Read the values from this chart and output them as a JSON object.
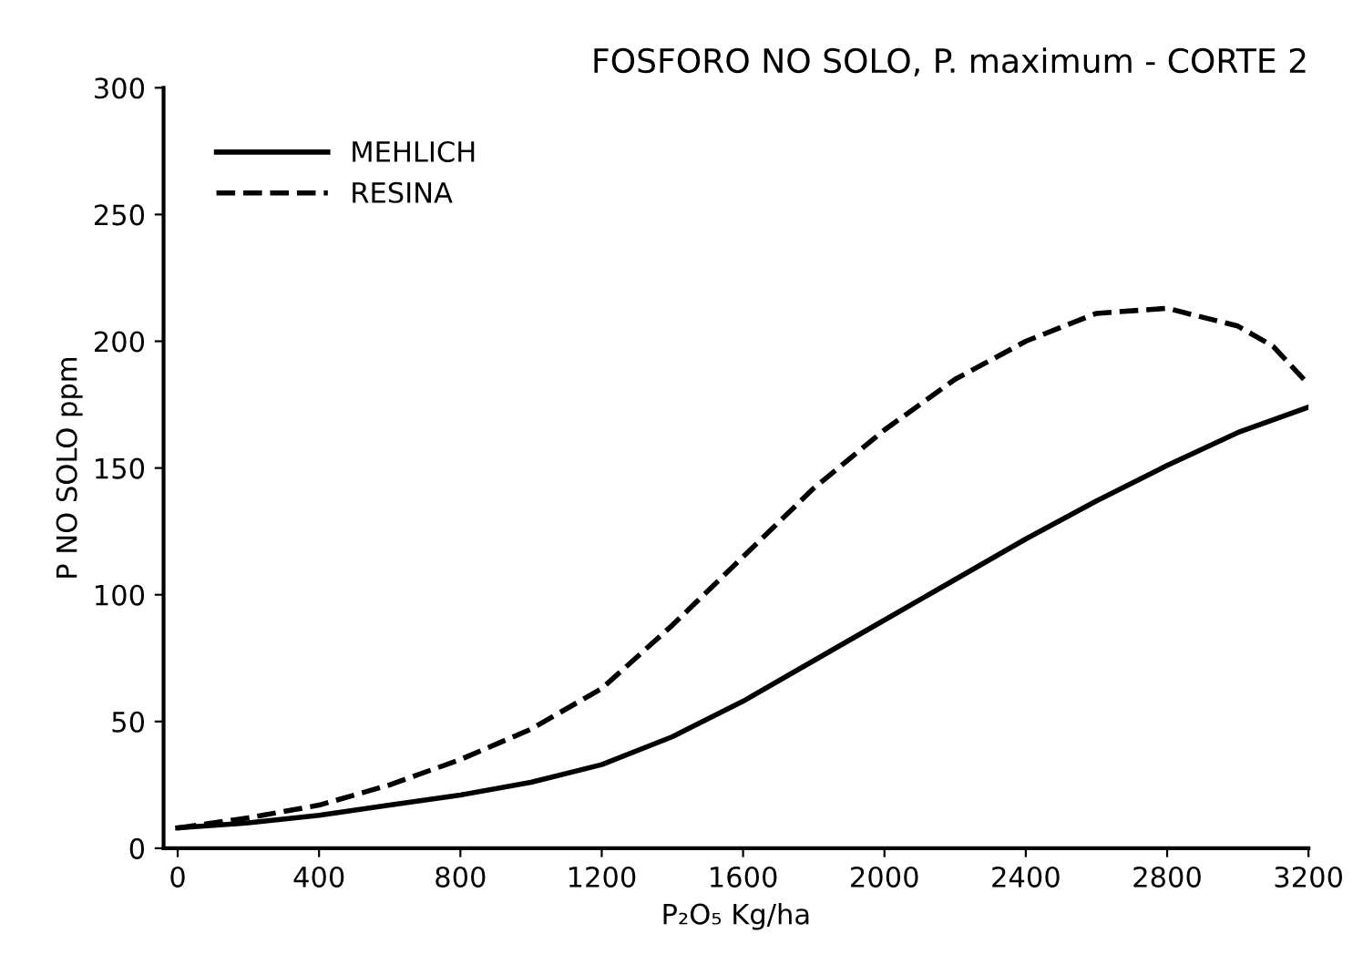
{
  "chart_data": {
    "type": "line",
    "title": "FOSFORO NO SOLO, P. maximum - CORTE 2",
    "xlabel": "P₂O₅ Kg/ha",
    "ylabel": "P NO SOLO ppm",
    "series": [
      {
        "name": "MEHLICH",
        "color": "#000000",
        "line_style": "solid",
        "x": [
          0,
          200,
          400,
          600,
          800,
          1000,
          1200,
          1400,
          1600,
          1800,
          2000,
          2200,
          2400,
          2600,
          2800,
          3000,
          3200
        ],
        "values": [
          8,
          10,
          13,
          17,
          21,
          26,
          33,
          44,
          58,
          74,
          90,
          106,
          122,
          137,
          151,
          164,
          174
        ]
      },
      {
        "name": "RESINA",
        "color": "#000000",
        "line_style": "dashed",
        "x": [
          0,
          200,
          400,
          600,
          800,
          1000,
          1200,
          1400,
          1600,
          1800,
          2000,
          2200,
          2400,
          2600,
          2800,
          3000,
          3100,
          3200
        ],
        "values": [
          8,
          12,
          17,
          25,
          35,
          47,
          63,
          88,
          115,
          142,
          165,
          185,
          200,
          211,
          213,
          206,
          198,
          183
        ]
      }
    ],
    "xlim": [
      -40,
      3200
    ],
    "xticks": [
      0,
      400,
      800,
      1200,
      1600,
      2000,
      2400,
      2800,
      3200
    ],
    "ylim": [
      0,
      300
    ],
    "yticks": [
      0,
      50,
      100,
      150,
      200,
      250,
      300
    ],
    "grid": false,
    "legend": "top left",
    "marker": "none"
  }
}
